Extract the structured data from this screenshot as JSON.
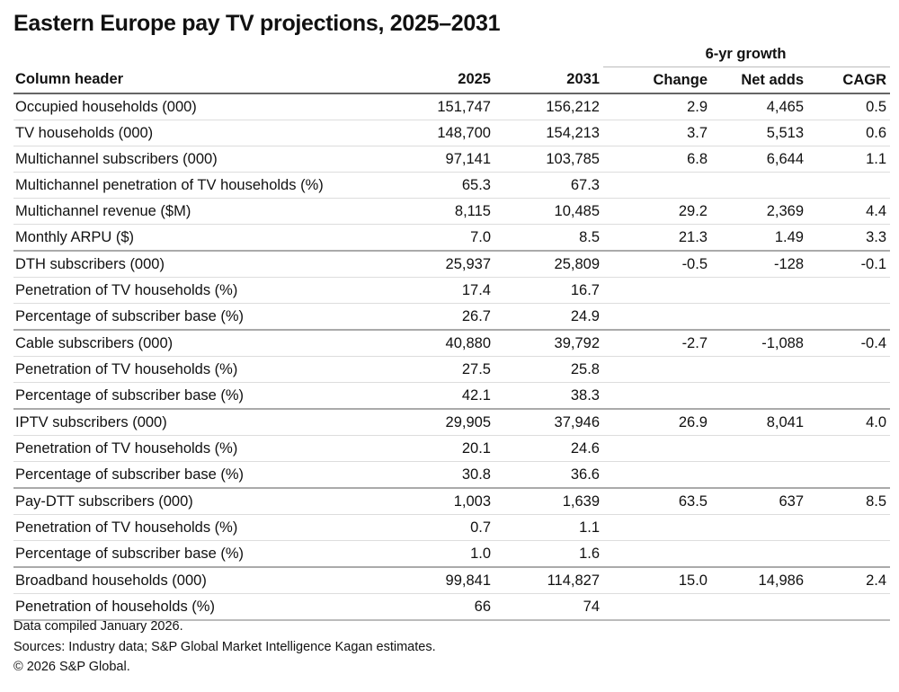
{
  "title": "Eastern Europe pay TV projections, 2025–2031",
  "group_header": "6-yr growth",
  "columns": [
    "Column header",
    "2025",
    "2031",
    "Change",
    "Net adds",
    "CAGR"
  ],
  "rows": [
    [
      "Occupied households (000)",
      "151,747",
      "156,212",
      "2.9",
      "4,465",
      "0.5"
    ],
    [
      "TV households (000)",
      "148,700",
      "154,213",
      "3.7",
      "5,513",
      "0.6"
    ],
    [
      "Multichannel subscribers (000)",
      "97,141",
      "103,785",
      "6.8",
      "6,644",
      "1.1"
    ],
    [
      "Multichannel penetration of TV households (%)",
      "65.3",
      "67.3",
      "",
      "",
      ""
    ],
    [
      "Multichannel revenue ($M)",
      "8,115",
      "10,485",
      "29.2",
      "2,369",
      "4.4"
    ],
    [
      "Monthly ARPU ($)",
      "7.0",
      "8.5",
      "21.3",
      "1.49",
      "3.3"
    ],
    [
      "DTH subscribers (000)",
      "25,937",
      "25,809",
      "-0.5",
      "-128",
      "-0.1"
    ],
    [
      "Penetration of TV households (%)",
      "17.4",
      "16.7",
      "",
      "",
      ""
    ],
    [
      "Percentage of subscriber base (%)",
      "26.7",
      "24.9",
      "",
      "",
      ""
    ],
    [
      "Cable subscribers (000)",
      "40,880",
      "39,792",
      "-2.7",
      "-1,088",
      "-0.4"
    ],
    [
      "Penetration of TV households (%)",
      "27.5",
      "25.8",
      "",
      "",
      ""
    ],
    [
      "Percentage of subscriber base (%)",
      "42.1",
      "38.3",
      "",
      "",
      ""
    ],
    [
      "IPTV subscribers (000)",
      "29,905",
      "37,946",
      "26.9",
      "8,041",
      "4.0"
    ],
    [
      "Penetration of TV households (%)",
      "20.1",
      "24.6",
      "",
      "",
      ""
    ],
    [
      "Percentage of subscriber base (%)",
      "30.8",
      "36.6",
      "",
      "",
      ""
    ],
    [
      "Pay-DTT subscribers (000)",
      "1,003",
      "1,639",
      "63.5",
      "637",
      "8.5"
    ],
    [
      "Penetration of TV households (%)",
      "0.7",
      "1.1",
      "",
      "",
      ""
    ],
    [
      "Percentage of subscriber base (%)",
      "1.0",
      "1.6",
      "",
      "",
      ""
    ],
    [
      "Broadband households (000)",
      "99,841",
      "114,827",
      "15.0",
      "14,986",
      "2.4"
    ],
    [
      "Penetration of households (%)",
      "66",
      "74",
      "",
      "",
      ""
    ]
  ],
  "notes": [
    "Data compiled January 2026.",
    "Sources: Industry data; S&P Global Market Intelligence Kagan estimates.",
    "© 2026 S&P Global."
  ]
}
